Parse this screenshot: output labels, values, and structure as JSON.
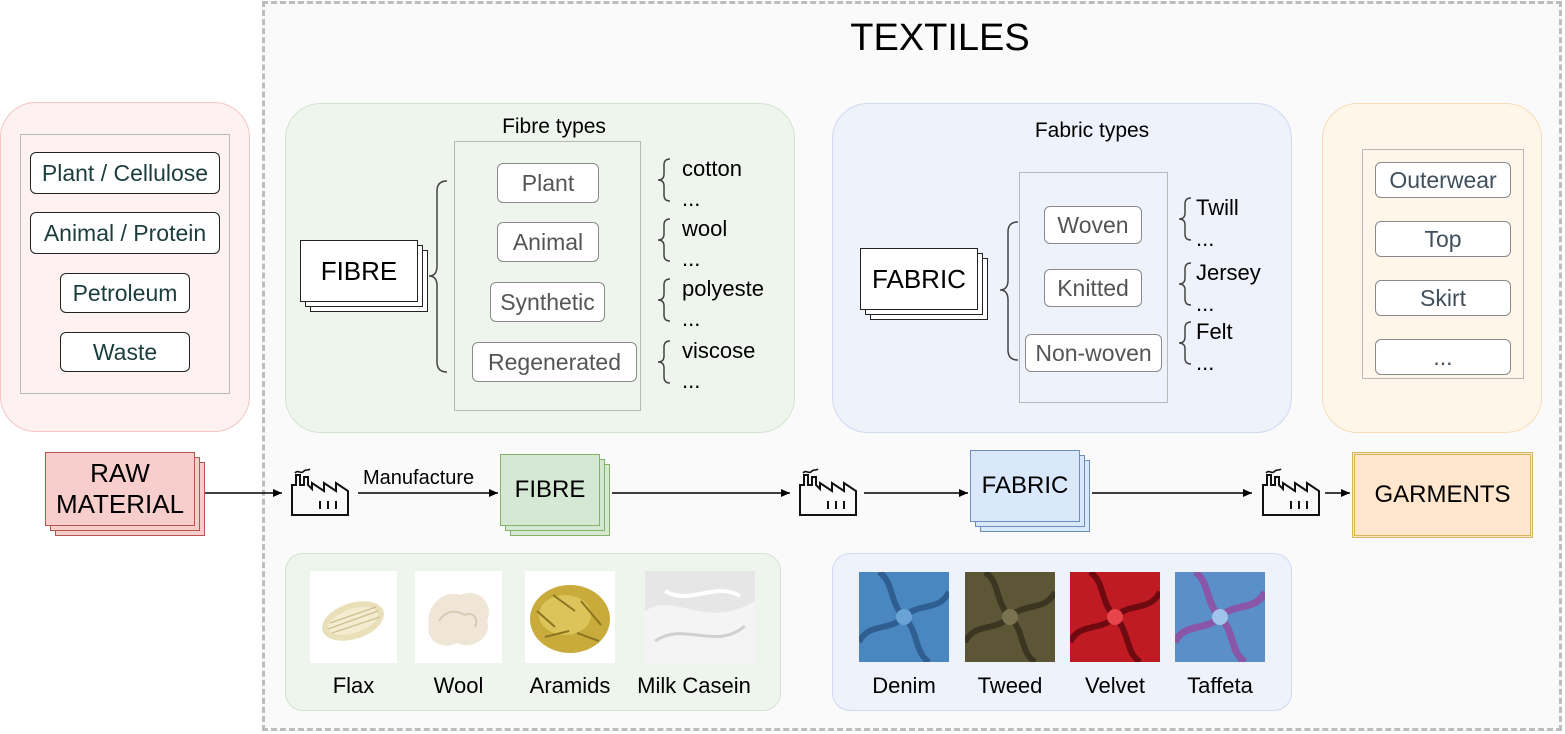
{
  "title": "TEXTILES",
  "raw_material": {
    "items": [
      "Plant / Cellulose",
      "Animal / Protein",
      "Petroleum",
      "Waste"
    ],
    "stage_label_line1": "RAW",
    "stage_label_line2": "MATERIAL"
  },
  "fibre": {
    "panel_title": "Fibre types",
    "node_label": "FIBRE",
    "types": [
      "Plant",
      "Animal",
      "Synthetic",
      "Regenerated"
    ],
    "examples": [
      [
        "cotton",
        "..."
      ],
      [
        "wool",
        "..."
      ],
      [
        "polyeste",
        "..."
      ],
      [
        "viscose",
        "..."
      ]
    ],
    "stage_label": "FIBRE",
    "samples": [
      {
        "label": "Flax",
        "icon": "flax-image"
      },
      {
        "label": "Wool",
        "icon": "wool-image"
      },
      {
        "label": "Aramids",
        "icon": "aramids-image"
      },
      {
        "label": "Milk Casein",
        "icon": "milk-casein-image"
      }
    ]
  },
  "fabric": {
    "panel_title": "Fabric types",
    "node_label": "FABRIC",
    "types": [
      "Woven",
      "Knitted",
      "Non-woven"
    ],
    "examples": [
      [
        "Twill",
        "..."
      ],
      [
        "Jersey",
        "..."
      ],
      [
        "Felt",
        "..."
      ]
    ],
    "stage_label": "FABRIC",
    "samples": [
      {
        "label": "Denim",
        "icon": "denim-image"
      },
      {
        "label": "Tweed",
        "icon": "tweed-image"
      },
      {
        "label": "Velvet",
        "icon": "velvet-image"
      },
      {
        "label": "Taffeta",
        "icon": "taffeta-image"
      }
    ]
  },
  "garments": {
    "items": [
      "Outerwear",
      "Top",
      "Skirt",
      "..."
    ],
    "stage_label": "GARMENTS"
  },
  "flow": {
    "manufacture_label": "Manufacture",
    "factory_icon": "factory-icon"
  },
  "colors": {
    "raw": "#f8cecc",
    "fibre": "#d5e8d4",
    "fabric": "#dae8fc",
    "garments": "#ffe6cc",
    "dashed_border": "#bdbdbd"
  }
}
